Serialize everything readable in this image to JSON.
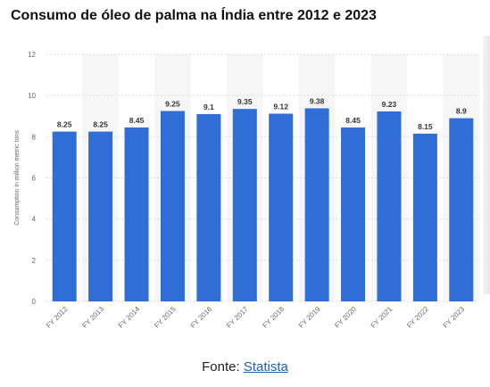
{
  "title": "Consumo de óleo de palma na Índia entre 2012 e 2023",
  "source": {
    "prefix": "Fonte:",
    "link_text": "Statista"
  },
  "colors": {
    "bar": "#2f6ed6",
    "band": "#f6f6f6",
    "grid": "#dcdcdc"
  },
  "chart_data": {
    "type": "bar",
    "categories": [
      "FY 2012",
      "FY 2013",
      "FY 2014",
      "FY 2015",
      "FY 2016",
      "FY 2017",
      "FY 2018",
      "FY 2019",
      "FY 2020",
      "FY 2021",
      "FY 2022",
      "FY 2023"
    ],
    "values": [
      8.25,
      8.25,
      8.45,
      9.25,
      9.1,
      9.35,
      9.12,
      9.38,
      8.45,
      9.23,
      8.15,
      8.9
    ],
    "value_labels": [
      "8.25",
      "8.25",
      "8.45",
      "9.25",
      "9.1",
      "9.35",
      "9.12",
      "9.38",
      "8.45",
      "9.23",
      "8.15",
      "8.9"
    ],
    "ylabel": "Consumption in million metric tons",
    "ylim": [
      0,
      12
    ],
    "yticks": [
      "0",
      "2",
      "4",
      "6",
      "8",
      "10",
      "12"
    ],
    "grid": true,
    "legend": false
  }
}
